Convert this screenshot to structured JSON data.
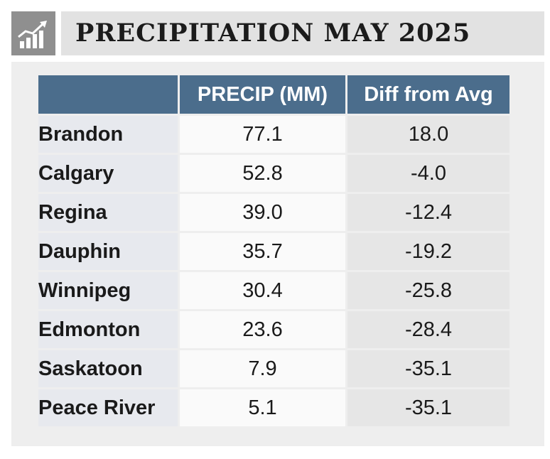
{
  "title": "PRECIPITATION MAY 2025",
  "icon": "bar-chart-trend-icon",
  "colors": {
    "header_bg": "#4b6d8c",
    "header_text": "#ffffff",
    "title_band": "#e2e2e2",
    "icon_box": "#8f8f8f",
    "panel_bg": "#eeeeee"
  },
  "chart_data": {
    "type": "table",
    "columns": [
      "",
      "PRECIP (MM)",
      "Diff from Avg"
    ],
    "rows": [
      {
        "city": "Brandon",
        "precip": "77.1",
        "diff": "18.0"
      },
      {
        "city": "Calgary",
        "precip": "52.8",
        "diff": "-4.0"
      },
      {
        "city": "Regina",
        "precip": "39.0",
        "diff": "-12.4"
      },
      {
        "city": "Dauphin",
        "precip": "35.7",
        "diff": "-19.2"
      },
      {
        "city": "Winnipeg",
        "precip": "30.4",
        "diff": "-25.8"
      },
      {
        "city": "Edmonton",
        "precip": "23.6",
        "diff": "-28.4"
      },
      {
        "city": "Saskatoon",
        "precip": "7.9",
        "diff": "-35.1"
      },
      {
        "city": "Peace River",
        "precip": "5.1",
        "diff": "-35.1"
      }
    ]
  }
}
